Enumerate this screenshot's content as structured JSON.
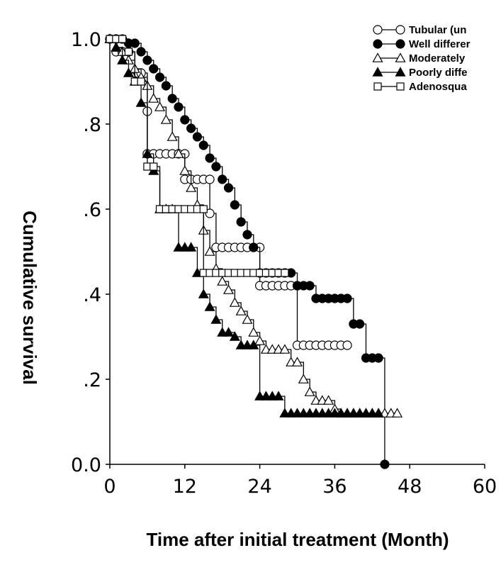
{
  "chart_data": {
    "type": "line",
    "title": "",
    "xlabel": "Time after initial treatment (Month)",
    "ylabel": "Cumulative survival",
    "xlim": [
      0,
      60
    ],
    "ylim": [
      0,
      1
    ],
    "x_ticks": [
      0,
      12,
      24,
      36,
      48,
      60
    ],
    "x_tick_labels": [
      "0",
      "12",
      "24",
      "36",
      "48",
      "60"
    ],
    "y_ticks": [
      0,
      0.2,
      0.4,
      0.6,
      0.8,
      1.0
    ],
    "y_tick_labels": [
      "0.0",
      ".2",
      ".4",
      ".6",
      ".8",
      "1.0"
    ],
    "grid": false,
    "legend_position": "top-right",
    "series": [
      {
        "name": "Tubular (un",
        "marker": "circle-open",
        "color": "#000000",
        "x": [
          0,
          1,
          1,
          2,
          2,
          3,
          3,
          4,
          4.5,
          5,
          6,
          6,
          7,
          8,
          9,
          10,
          11,
          12,
          12,
          13,
          14,
          15,
          16,
          16,
          17,
          18,
          19,
          20,
          21,
          22,
          23,
          24,
          24,
          25,
          26,
          27,
          28,
          29,
          30,
          30,
          31,
          32,
          33,
          34,
          35,
          36,
          37,
          38
        ],
        "y": [
          1.0,
          1.0,
          0.97,
          0.97,
          0.97,
          0.97,
          0.97,
          0.92,
          0.92,
          0.92,
          0.83,
          0.73,
          0.73,
          0.73,
          0.73,
          0.73,
          0.73,
          0.73,
          0.67,
          0.67,
          0.67,
          0.67,
          0.67,
          0.59,
          0.51,
          0.51,
          0.51,
          0.51,
          0.51,
          0.51,
          0.51,
          0.51,
          0.42,
          0.42,
          0.42,
          0.42,
          0.42,
          0.42,
          0.42,
          0.28,
          0.28,
          0.28,
          0.28,
          0.28,
          0.28,
          0.28,
          0.28,
          0.28
        ]
      },
      {
        "name": "Well differer",
        "marker": "circle-filled",
        "color": "#000000",
        "x": [
          0,
          1,
          2,
          3,
          4,
          5,
          6,
          7,
          8,
          9,
          10,
          11,
          12,
          13,
          14,
          15,
          16,
          17,
          18,
          19,
          20,
          21,
          22,
          23,
          24,
          25,
          26,
          27,
          28,
          29,
          30,
          31,
          32,
          33,
          34,
          35,
          36,
          37,
          38,
          39,
          40,
          41,
          42,
          43,
          44
        ],
        "y": [
          1.0,
          1.0,
          1.0,
          0.99,
          0.99,
          0.97,
          0.95,
          0.93,
          0.91,
          0.89,
          0.86,
          0.84,
          0.81,
          0.79,
          0.77,
          0.75,
          0.72,
          0.7,
          0.67,
          0.65,
          0.61,
          0.57,
          0.54,
          0.51,
          0.45,
          0.45,
          0.45,
          0.45,
          0.45,
          0.45,
          0.42,
          0.42,
          0.42,
          0.39,
          0.39,
          0.39,
          0.39,
          0.39,
          0.39,
          0.33,
          0.33,
          0.25,
          0.25,
          0.25,
          0.0
        ]
      },
      {
        "name": "Moderately",
        "marker": "triangle-open",
        "color": "#000000",
        "x": [
          0,
          1,
          2,
          3,
          4,
          5,
          6,
          7,
          8,
          9,
          10,
          11,
          12,
          13,
          14,
          15,
          16,
          17,
          18,
          19,
          20,
          21,
          22,
          23,
          24,
          25,
          26,
          27,
          28,
          29,
          30,
          31,
          32,
          33,
          34,
          35,
          36,
          37,
          38,
          39,
          40,
          41,
          42,
          43,
          44,
          45,
          46
        ],
        "y": [
          1.0,
          0.98,
          0.97,
          0.95,
          0.93,
          0.91,
          0.89,
          0.86,
          0.84,
          0.81,
          0.77,
          0.73,
          0.69,
          0.65,
          0.61,
          0.55,
          0.5,
          0.46,
          0.43,
          0.41,
          0.38,
          0.36,
          0.34,
          0.31,
          0.29,
          0.27,
          0.27,
          0.27,
          0.27,
          0.24,
          0.24,
          0.2,
          0.17,
          0.15,
          0.15,
          0.15,
          0.13,
          0.12,
          0.12,
          0.12,
          0.12,
          0.12,
          0.12,
          0.12,
          0.12,
          0.12,
          0.12
        ]
      },
      {
        "name": "Poorly diffe",
        "marker": "triangle-filled",
        "color": "#000000",
        "x": [
          0,
          1,
          2,
          3,
          4,
          5,
          6,
          7,
          8,
          9,
          10,
          11,
          12,
          13,
          14,
          15,
          16,
          17,
          18,
          19,
          20,
          21,
          22,
          23,
          24,
          25,
          26,
          27,
          28,
          29,
          30,
          31,
          32,
          33,
          34,
          35,
          36,
          37,
          38,
          39,
          40,
          41,
          42,
          43
        ],
        "y": [
          1.0,
          0.98,
          0.95,
          0.92,
          0.9,
          0.85,
          0.73,
          0.69,
          0.6,
          0.6,
          0.6,
          0.51,
          0.51,
          0.51,
          0.45,
          0.4,
          0.37,
          0.34,
          0.31,
          0.31,
          0.3,
          0.28,
          0.28,
          0.28,
          0.16,
          0.16,
          0.16,
          0.16,
          0.12,
          0.12,
          0.12,
          0.12,
          0.12,
          0.12,
          0.12,
          0.12,
          0.12,
          0.12,
          0.12,
          0.12,
          0.12,
          0.12,
          0.12,
          0.12
        ]
      },
      {
        "name": "Adenosqua",
        "marker": "square-open",
        "color": "#000000",
        "x": [
          0,
          1,
          2,
          3,
          4,
          5,
          6,
          7,
          8,
          9,
          10,
          11,
          12,
          13,
          14,
          15,
          15,
          16,
          17,
          18,
          19,
          20,
          21,
          22,
          23,
          24,
          25,
          26,
          27,
          28
        ],
        "y": [
          1.0,
          1.0,
          1.0,
          0.97,
          0.9,
          0.9,
          0.7,
          0.7,
          0.6,
          0.6,
          0.6,
          0.6,
          0.6,
          0.6,
          0.6,
          0.6,
          0.45,
          0.45,
          0.45,
          0.45,
          0.45,
          0.45,
          0.45,
          0.45,
          0.45,
          0.45,
          0.45,
          0.45,
          0.45,
          0.45
        ]
      }
    ]
  }
}
